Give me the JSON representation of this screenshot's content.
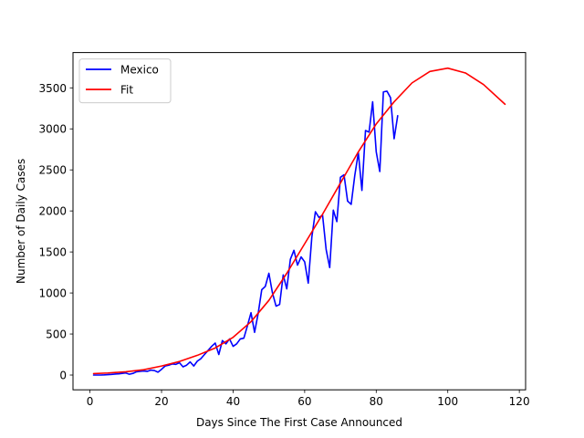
{
  "chart_data": {
    "type": "line",
    "xlabel": "Days Since The First Case Announced",
    "ylabel": "Number of Daily Cases",
    "xlim": [
      -4.75,
      121.75
    ],
    "ylim": [
      -180,
      3930
    ],
    "xticks": [
      0,
      20,
      40,
      60,
      80,
      100,
      120
    ],
    "yticks": [
      0,
      500,
      1000,
      1500,
      2000,
      2500,
      3000,
      3500
    ],
    "grid": false,
    "legend_position": "top-left",
    "series": [
      {
        "name": "Mexico",
        "color": "#0000ff",
        "x": [
          1,
          2,
          3,
          4,
          5,
          6,
          7,
          8,
          9,
          10,
          11,
          12,
          13,
          14,
          15,
          16,
          17,
          18,
          19,
          20,
          21,
          22,
          23,
          24,
          25,
          26,
          27,
          28,
          29,
          30,
          31,
          32,
          33,
          34,
          35,
          36,
          37,
          38,
          39,
          40,
          41,
          42,
          43,
          44,
          45,
          46,
          47,
          48,
          49,
          50,
          51,
          52,
          53,
          54,
          55,
          56,
          57,
          58,
          59,
          60,
          61,
          62,
          63,
          64,
          65,
          66,
          67,
          68,
          69,
          70,
          71,
          72,
          73,
          74,
          75,
          76,
          77,
          78,
          79,
          80,
          81,
          82,
          83,
          84,
          85,
          86
        ],
        "y": [
          0,
          0,
          0,
          2,
          5,
          8,
          12,
          15,
          20,
          25,
          10,
          20,
          40,
          45,
          50,
          45,
          60,
          55,
          35,
          70,
          110,
          120,
          135,
          130,
          150,
          100,
          120,
          160,
          110,
          170,
          200,
          250,
          300,
          350,
          390,
          250,
          420,
          380,
          440,
          350,
          380,
          440,
          450,
          600,
          760,
          520,
          750,
          1040,
          1080,
          1240,
          1000,
          840,
          860,
          1220,
          1050,
          1410,
          1520,
          1340,
          1440,
          1380,
          1120,
          1680,
          1990,
          1920,
          1950,
          1530,
          1310,
          2010,
          1870,
          2410,
          2440,
          2120,
          2080,
          2430,
          2710,
          2250,
          2980,
          2960,
          3330,
          2720,
          2480,
          3450,
          3460,
          3380,
          2880,
          3160
        ]
      },
      {
        "name": "Fit",
        "color": "#ff0000",
        "x": [
          1,
          5,
          10,
          15,
          20,
          25,
          30,
          35,
          40,
          45,
          50,
          55,
          60,
          65,
          70,
          75,
          80,
          85,
          90,
          95,
          100,
          105,
          110,
          116
        ],
        "y": [
          18,
          25,
          40,
          65,
          110,
          165,
          240,
          330,
          460,
          650,
          910,
          1240,
          1600,
          1960,
          2340,
          2720,
          3060,
          3330,
          3560,
          3700,
          3740,
          3680,
          3540,
          3300
        ]
      }
    ]
  }
}
